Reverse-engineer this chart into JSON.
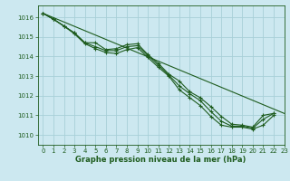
{
  "title": "Graphe pression niveau de la mer (hPa)",
  "bg_color": "#cce8f0",
  "grid_color": "#a8cfd8",
  "line_color": "#1e5c1e",
  "xlim": [
    -0.5,
    23
  ],
  "ylim": [
    1009.5,
    1016.6
  ],
  "yticks": [
    1010,
    1011,
    1012,
    1013,
    1014,
    1015,
    1016
  ],
  "xticks": [
    0,
    1,
    2,
    3,
    4,
    5,
    6,
    7,
    8,
    9,
    10,
    11,
    12,
    13,
    14,
    15,
    16,
    17,
    18,
    19,
    20,
    21,
    22,
    23
  ],
  "series_with_markers": [
    [
      1016.2,
      1015.9,
      1015.55,
      1015.2,
      1014.7,
      1014.7,
      1014.35,
      1014.4,
      1014.6,
      1014.65,
      1014.1,
      1013.65,
      1013.1,
      1012.75,
      1012.2,
      1011.9,
      1011.45,
      1010.95,
      1010.55,
      1010.5,
      1010.4,
      1011.0,
      1011.1,
      null
    ],
    [
      1016.2,
      1015.9,
      1015.55,
      1015.2,
      1014.7,
      1014.5,
      1014.3,
      1014.3,
      1014.5,
      1014.55,
      1014.05,
      1013.55,
      1013.05,
      1012.5,
      1012.1,
      1011.75,
      1011.2,
      1010.7,
      1010.45,
      1010.45,
      1010.35,
      1010.8,
      1011.1,
      null
    ],
    [
      1016.2,
      1015.9,
      1015.55,
      1015.15,
      1014.65,
      1014.4,
      1014.2,
      1014.15,
      1014.35,
      1014.45,
      1013.95,
      1013.45,
      1013.0,
      1012.3,
      1011.9,
      1011.5,
      1010.95,
      1010.5,
      1010.4,
      1010.4,
      1010.3,
      1010.5,
      1011.0,
      null
    ]
  ],
  "diagonal_line": [
    [
      0,
      1016.2
    ],
    [
      23,
      1011.1
    ]
  ],
  "tick_fontsize": 5,
  "label_fontsize": 6,
  "linewidth": 0.8,
  "markersize": 3.5
}
